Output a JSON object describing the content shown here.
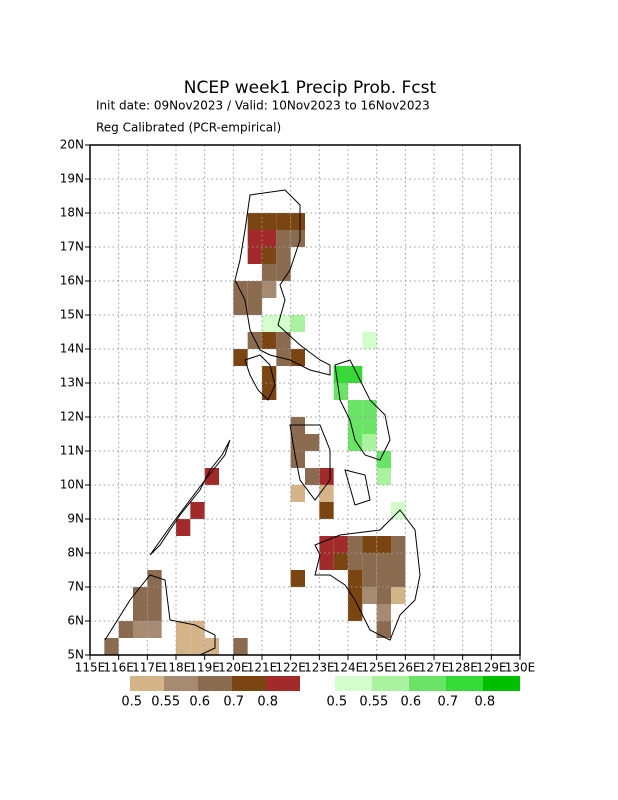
{
  "chart_data": {
    "type": "map",
    "title": "NCEP week1 Precip Prob. Fcst",
    "subtitle": "Init date: 09Nov2023 / Valid: 10Nov2023 to 16Nov2023",
    "subtitle2": "Reg Calibrated (PCR-empirical)",
    "xlim": [
      115,
      130
    ],
    "ylim": [
      5,
      20
    ],
    "xticks": [
      {
        "value": 115,
        "label": "115E"
      },
      {
        "value": 116,
        "label": "116E"
      },
      {
        "value": 117,
        "label": "117E"
      },
      {
        "value": 118,
        "label": "118E"
      },
      {
        "value": 119,
        "label": "119E"
      },
      {
        "value": 120,
        "label": "120E"
      },
      {
        "value": 121,
        "label": "121E"
      },
      {
        "value": 122,
        "label": "122E"
      },
      {
        "value": 123,
        "label": "123E"
      },
      {
        "value": 124,
        "label": "124E"
      },
      {
        "value": 125,
        "label": "125E"
      },
      {
        "value": 126,
        "label": "126E"
      },
      {
        "value": 127,
        "label": "127E"
      },
      {
        "value": 128,
        "label": "128E"
      },
      {
        "value": 129,
        "label": "129E"
      },
      {
        "value": 130,
        "label": "130E"
      }
    ],
    "yticks": [
      {
        "value": 5,
        "label": "5N"
      },
      {
        "value": 6,
        "label": "6N"
      },
      {
        "value": 7,
        "label": "7N"
      },
      {
        "value": 8,
        "label": "8N"
      },
      {
        "value": 9,
        "label": "9N"
      },
      {
        "value": 10,
        "label": "10N"
      },
      {
        "value": 11,
        "label": "11N"
      },
      {
        "value": 12,
        "label": "12N"
      },
      {
        "value": 13,
        "label": "13N"
      },
      {
        "value": 14,
        "label": "14N"
      },
      {
        "value": 15,
        "label": "15N"
      },
      {
        "value": 16,
        "label": "16N"
      },
      {
        "value": 17,
        "label": "17N"
      },
      {
        "value": 18,
        "label": "18N"
      },
      {
        "value": 19,
        "label": "19N"
      },
      {
        "value": 20,
        "label": "20N"
      }
    ],
    "grid": true,
    "cell_size": 0.5,
    "levels": [
      0.5,
      0.55,
      0.6,
      0.7,
      0.8
    ],
    "below_colors": [
      "#d6b48a",
      "#a68a72",
      "#8b6b50",
      "#7b4512",
      "#a32a2a"
    ],
    "above_colors": [
      "#d2ffcc",
      "#aaf2a0",
      "#6ae466",
      "#36da36",
      "#00bf00"
    ],
    "below": [
      [
        120.5,
        17.5,
        0.7
      ],
      [
        121,
        17.5,
        0.7
      ],
      [
        121.5,
        17.5,
        0.7
      ],
      [
        122,
        17.5,
        0.7
      ],
      [
        120.5,
        17,
        0.8
      ],
      [
        121,
        17,
        0.8
      ],
      [
        121.5,
        17,
        0.6
      ],
      [
        122,
        17,
        0.6
      ],
      [
        120.5,
        16.5,
        0.8
      ],
      [
        121,
        16.5,
        0.7
      ],
      [
        121.5,
        16.5,
        0.6
      ],
      [
        121,
        16,
        0.6
      ],
      [
        121.5,
        16,
        0.6
      ],
      [
        120,
        15.5,
        0.6
      ],
      [
        120.5,
        15.5,
        0.6
      ],
      [
        121,
        15.5,
        0.55
      ],
      [
        120,
        15,
        0.6
      ],
      [
        120.5,
        15,
        0.6
      ],
      [
        120.5,
        14,
        0.6
      ],
      [
        121,
        14,
        0.7
      ],
      [
        121.5,
        14,
        0.6
      ],
      [
        120,
        13.5,
        0.7
      ],
      [
        121.5,
        13.5,
        0.6
      ],
      [
        122,
        13.5,
        0.7
      ],
      [
        121,
        13,
        0.7
      ],
      [
        121,
        12.5,
        0.7
      ],
      [
        122,
        11.5,
        0.6
      ],
      [
        122,
        11,
        0.6
      ],
      [
        122.5,
        11,
        0.6
      ],
      [
        122,
        10.5,
        0.6
      ],
      [
        122.5,
        10,
        0.6
      ],
      [
        123,
        10,
        0.8
      ],
      [
        122,
        9.5,
        0.5
      ],
      [
        123,
        9.5,
        0.5
      ],
      [
        123,
        9,
        0.7
      ],
      [
        119,
        10,
        0.8
      ],
      [
        118.5,
        9,
        0.8
      ],
      [
        118,
        8.5,
        0.8
      ],
      [
        123,
        8,
        0.8
      ],
      [
        123.5,
        8,
        0.8
      ],
      [
        124,
        8,
        0.6
      ],
      [
        124.5,
        8,
        0.7
      ],
      [
        125,
        8,
        0.7
      ],
      [
        125.5,
        8,
        0.6
      ],
      [
        123,
        7.5,
        0.8
      ],
      [
        123.5,
        7.5,
        0.7
      ],
      [
        124,
        7.5,
        0.6
      ],
      [
        124.5,
        7.5,
        0.6
      ],
      [
        125,
        7.5,
        0.6
      ],
      [
        125.5,
        7.5,
        0.6
      ],
      [
        122,
        7,
        0.7
      ],
      [
        124,
        7,
        0.7
      ],
      [
        124.5,
        7,
        0.6
      ],
      [
        125,
        7,
        0.6
      ],
      [
        125.5,
        7,
        0.6
      ],
      [
        124,
        6.5,
        0.7
      ],
      [
        124.5,
        6.5,
        0.55
      ],
      [
        125,
        6.5,
        0.6
      ],
      [
        125.5,
        6.5,
        0.5
      ],
      [
        124,
        6,
        0.7
      ],
      [
        125,
        6,
        0.55
      ],
      [
        125,
        5.5,
        0.6
      ],
      [
        117,
        7,
        0.6
      ],
      [
        116.5,
        6.5,
        0.6
      ],
      [
        117,
        6.5,
        0.6
      ],
      [
        116.5,
        6,
        0.6
      ],
      [
        117,
        6,
        0.6
      ],
      [
        116,
        5.5,
        0.6
      ],
      [
        116.5,
        5.5,
        0.55
      ],
      [
        117,
        5.5,
        0.55
      ],
      [
        118,
        5.5,
        0.5
      ],
      [
        118.5,
        5.5,
        0.5
      ],
      [
        118,
        5,
        0.5
      ],
      [
        118.5,
        5,
        0.5
      ],
      [
        119,
        5,
        0.5
      ],
      [
        120,
        5,
        0.6
      ],
      [
        115.5,
        5,
        0.6
      ]
    ],
    "above": [
      [
        121,
        14.5,
        0.5
      ],
      [
        121.5,
        14.5,
        0.5
      ],
      [
        122,
        14.5,
        0.55
      ],
      [
        124.5,
        14,
        0.5
      ],
      [
        123.5,
        13,
        0.7
      ],
      [
        124,
        13,
        0.7
      ],
      [
        123.5,
        12.5,
        0.6
      ],
      [
        124,
        12,
        0.6
      ],
      [
        124.5,
        12,
        0.6
      ],
      [
        124,
        11.5,
        0.6
      ],
      [
        124.5,
        11.5,
        0.6
      ],
      [
        124,
        11,
        0.6
      ],
      [
        124.5,
        11,
        0.55
      ],
      [
        125,
        10.5,
        0.6
      ],
      [
        125,
        10,
        0.55
      ],
      [
        125.5,
        9,
        0.5
      ]
    ]
  }
}
